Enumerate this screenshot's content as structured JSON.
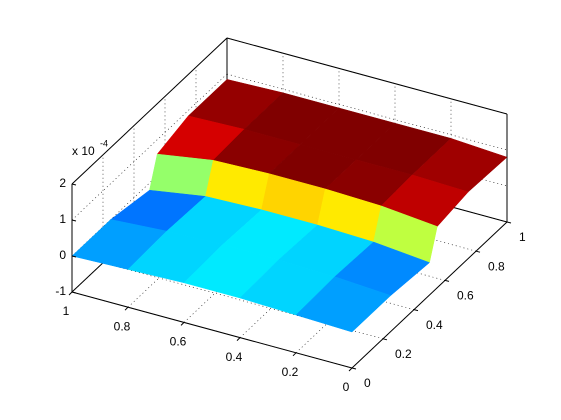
{
  "chart_data": {
    "type": "surface3d",
    "colormap": "jet",
    "clim": [
      -0.3,
      0.9
    ],
    "grid": true,
    "x": [
      0,
      0.2,
      0.4,
      0.6,
      0.8,
      1
    ],
    "y": [
      0,
      0.25,
      0.5,
      0.55,
      0.75,
      1
    ],
    "z": [
      [
        0,
        0.05,
        0.1,
        0.1,
        0.05,
        0
      ],
      [
        0,
        0.1,
        0.15,
        0.15,
        0.1,
        0
      ],
      [
        -0.1,
        0.05,
        0.1,
        0.1,
        0.05,
        -0.2
      ],
      [
        0.7,
        0.85,
        0.9,
        0.9,
        0.85,
        0.6
      ],
      [
        0.85,
        0.9,
        0.9,
        0.9,
        0.9,
        0.85
      ],
      [
        0.8,
        0.9,
        0.9,
        0.9,
        0.9,
        0.85
      ]
    ],
    "xlim": [
      0,
      1
    ],
    "xticks": [
      0,
      0.2,
      0.4,
      0.6,
      0.8,
      1
    ],
    "ylim": [
      0,
      1
    ],
    "yticks": [
      0,
      0.2,
      0.4,
      0.6,
      0.8,
      1
    ],
    "zlim": [
      -1,
      2
    ],
    "zticks": [
      -1,
      0,
      1,
      2
    ],
    "z_exponent": {
      "base": "x 10",
      "power": "-4"
    }
  }
}
